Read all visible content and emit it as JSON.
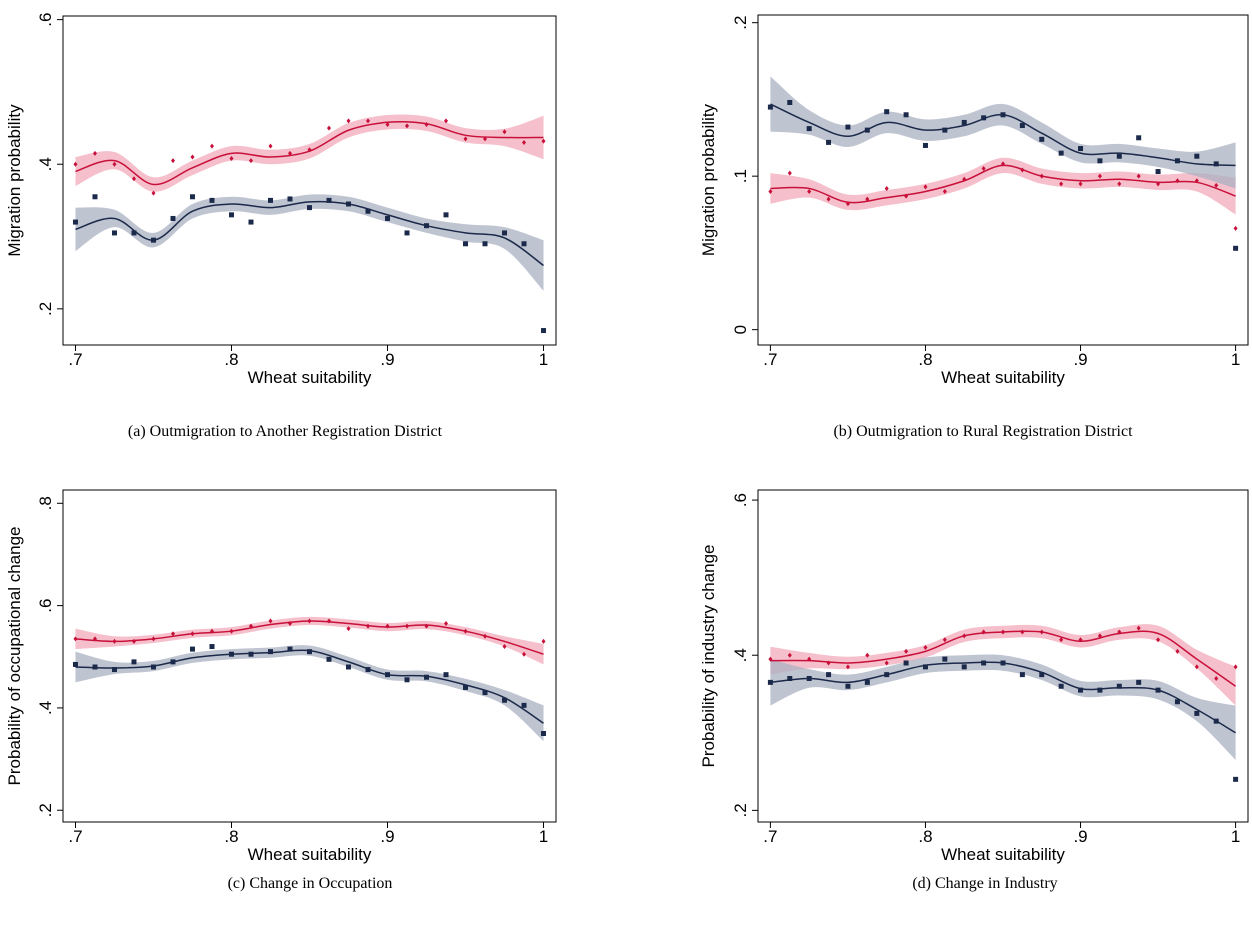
{
  "chart_data": [
    {
      "type": "scatter",
      "caption": "(a)  Outmigration to Another Registration District",
      "x_label": "Wheat suitability",
      "y_label": "Migration probability",
      "x": [
        0.7,
        0.7125,
        0.725,
        0.7375,
        0.75,
        0.7625,
        0.775,
        0.7875,
        0.8,
        0.8125,
        0.825,
        0.8375,
        0.85,
        0.8625,
        0.875,
        0.8875,
        0.9,
        0.9125,
        0.925,
        0.9375,
        0.95,
        0.9625,
        0.975,
        0.9875,
        1.0
      ],
      "fit_x": [
        0.7,
        0.725,
        0.75,
        0.775,
        0.8,
        0.825,
        0.85,
        0.875,
        0.9,
        0.925,
        0.95,
        0.975,
        1.0
      ],
      "xlim": [
        0.692,
        1.008
      ],
      "xticks": [
        {
          "value": 0.7,
          "label": ".7"
        },
        {
          "value": 0.8,
          "label": ".8"
        },
        {
          "value": 0.9,
          "label": ".9"
        },
        1
      ],
      "ylim": [
        0.15,
        0.605
      ],
      "yticks": [
        {
          "value": 0.2,
          "label": ".2"
        },
        {
          "value": 0.4,
          "label": ".4"
        },
        {
          "value": 0.6,
          "label": ".6"
        }
      ],
      "series": [
        {
          "color": "#c8103a",
          "band_color": "#f2a9ba",
          "marker": "diamond",
          "values": [
            0.4,
            0.415,
            0.4,
            0.38,
            0.36,
            0.405,
            0.41,
            0.425,
            0.408,
            0.405,
            0.425,
            0.415,
            0.42,
            0.45,
            0.46,
            0.46,
            0.455,
            0.453,
            0.455,
            0.46,
            0.435,
            0.435,
            0.445,
            0.43,
            0.432
          ],
          "fit": [
            0.39,
            0.405,
            0.372,
            0.395,
            0.415,
            0.41,
            0.418,
            0.447,
            0.458,
            0.456,
            0.44,
            0.437,
            0.437
          ],
          "ci": [
            0.02,
            0.012,
            0.01,
            0.01,
            0.01,
            0.01,
            0.01,
            0.01,
            0.01,
            0.01,
            0.01,
            0.012,
            0.03
          ]
        },
        {
          "color": "#1b2a4a",
          "band_color": "#a9b0c2",
          "marker": "square",
          "values": [
            0.32,
            0.355,
            0.305,
            0.305,
            0.295,
            0.325,
            0.355,
            0.35,
            0.33,
            0.32,
            0.35,
            0.352,
            0.34,
            0.35,
            0.345,
            0.335,
            0.325,
            0.305,
            0.315,
            0.33,
            0.29,
            0.29,
            0.305,
            0.29,
            0.17
          ],
          "fit": [
            0.31,
            0.325,
            0.295,
            0.335,
            0.345,
            0.34,
            0.348,
            0.345,
            0.33,
            0.315,
            0.305,
            0.298,
            0.26
          ],
          "ci": [
            0.03,
            0.012,
            0.01,
            0.01,
            0.01,
            0.01,
            0.01,
            0.01,
            0.01,
            0.01,
            0.012,
            0.015,
            0.035
          ]
        }
      ]
    },
    {
      "type": "scatter",
      "caption": "(b)  Outmigration to Rural Registration District",
      "x_label": "Wheat suitability",
      "y_label": "Migration probability",
      "x": [
        0.7,
        0.7125,
        0.725,
        0.7375,
        0.75,
        0.7625,
        0.775,
        0.7875,
        0.8,
        0.8125,
        0.825,
        0.8375,
        0.85,
        0.8625,
        0.875,
        0.8875,
        0.9,
        0.9125,
        0.925,
        0.9375,
        0.95,
        0.9625,
        0.975,
        0.9875,
        1.0
      ],
      "fit_x": [
        0.7,
        0.725,
        0.75,
        0.775,
        0.8,
        0.825,
        0.85,
        0.875,
        0.9,
        0.925,
        0.95,
        0.975,
        1.0
      ],
      "xlim": [
        0.692,
        1.008
      ],
      "xticks": [
        {
          "value": 0.7,
          "label": ".7"
        },
        {
          "value": 0.8,
          "label": ".8"
        },
        {
          "value": 0.9,
          "label": ".9"
        },
        1
      ],
      "ylim": [
        -0.01,
        0.205
      ],
      "yticks": [
        0,
        {
          "value": 0.1,
          "label": ".1"
        },
        {
          "value": 0.2,
          "label": ".2"
        }
      ],
      "series": [
        {
          "color": "#c8103a",
          "band_color": "#f2a9ba",
          "marker": "diamond",
          "values": [
            0.09,
            0.102,
            0.09,
            0.085,
            0.082,
            0.085,
            0.092,
            0.087,
            0.093,
            0.09,
            0.098,
            0.105,
            0.108,
            0.104,
            0.1,
            0.095,
            0.095,
            0.1,
            0.095,
            0.1,
            0.095,
            0.097,
            0.097,
            0.094,
            0.066
          ],
          "fit": [
            0.092,
            0.092,
            0.083,
            0.086,
            0.09,
            0.097,
            0.107,
            0.1,
            0.097,
            0.098,
            0.096,
            0.096,
            0.087
          ],
          "ci": [
            0.01,
            0.006,
            0.005,
            0.005,
            0.005,
            0.005,
            0.005,
            0.005,
            0.005,
            0.005,
            0.005,
            0.006,
            0.012
          ]
        },
        {
          "color": "#1b2a4a",
          "band_color": "#a9b0c2",
          "marker": "square",
          "values": [
            0.145,
            0.148,
            0.131,
            0.122,
            0.132,
            0.13,
            0.142,
            0.14,
            0.12,
            0.13,
            0.135,
            0.138,
            0.14,
            0.133,
            0.124,
            0.115,
            0.118,
            0.11,
            0.113,
            0.125,
            0.103,
            0.11,
            0.113,
            0.108,
            0.053
          ],
          "fit": [
            0.147,
            0.135,
            0.126,
            0.135,
            0.13,
            0.133,
            0.14,
            0.128,
            0.115,
            0.115,
            0.112,
            0.108,
            0.107
          ],
          "ci": [
            0.018,
            0.008,
            0.007,
            0.007,
            0.007,
            0.007,
            0.007,
            0.007,
            0.006,
            0.006,
            0.006,
            0.008,
            0.015
          ]
        }
      ]
    },
    {
      "type": "scatter",
      "caption": "(c)  Change in Occupation",
      "x_label": "Wheat suitability",
      "y_label": "Probability of occupational change",
      "x": [
        0.7,
        0.7125,
        0.725,
        0.7375,
        0.75,
        0.7625,
        0.775,
        0.7875,
        0.8,
        0.8125,
        0.825,
        0.8375,
        0.85,
        0.8625,
        0.875,
        0.8875,
        0.9,
        0.9125,
        0.925,
        0.9375,
        0.95,
        0.9625,
        0.975,
        0.9875,
        1.0
      ],
      "fit_x": [
        0.7,
        0.725,
        0.75,
        0.775,
        0.8,
        0.825,
        0.85,
        0.875,
        0.9,
        0.925,
        0.95,
        0.975,
        1.0
      ],
      "xlim": [
        0.692,
        1.008
      ],
      "xticks": [
        {
          "value": 0.7,
          "label": ".7"
        },
        {
          "value": 0.8,
          "label": ".8"
        },
        {
          "value": 0.9,
          "label": ".9"
        },
        1
      ],
      "ylim": [
        0.177,
        0.826
      ],
      "yticks": [
        {
          "value": 0.2,
          "label": ".2"
        },
        {
          "value": 0.4,
          "label": ".4"
        },
        {
          "value": 0.6,
          "label": ".6"
        },
        {
          "value": 0.8,
          "label": ".8"
        }
      ],
      "series": [
        {
          "color": "#c8103a",
          "band_color": "#f2a9ba",
          "marker": "diamond",
          "values": [
            0.535,
            0.535,
            0.53,
            0.53,
            0.535,
            0.545,
            0.545,
            0.55,
            0.55,
            0.56,
            0.57,
            0.565,
            0.57,
            0.57,
            0.555,
            0.56,
            0.56,
            0.56,
            0.56,
            0.565,
            0.55,
            0.54,
            0.52,
            0.505,
            0.53
          ],
          "fit": [
            0.535,
            0.53,
            0.535,
            0.545,
            0.55,
            0.563,
            0.57,
            0.565,
            0.558,
            0.562,
            0.55,
            0.53,
            0.505
          ],
          "ci": [
            0.02,
            0.01,
            0.008,
            0.008,
            0.008,
            0.008,
            0.008,
            0.008,
            0.008,
            0.008,
            0.008,
            0.01,
            0.02
          ]
        },
        {
          "color": "#1b2a4a",
          "band_color": "#a9b0c2",
          "marker": "square",
          "values": [
            0.485,
            0.48,
            0.475,
            0.49,
            0.48,
            0.49,
            0.515,
            0.52,
            0.505,
            0.505,
            0.51,
            0.515,
            0.51,
            0.495,
            0.48,
            0.475,
            0.465,
            0.455,
            0.46,
            0.465,
            0.44,
            0.43,
            0.415,
            0.405,
            0.35
          ],
          "fit": [
            0.48,
            0.478,
            0.482,
            0.498,
            0.505,
            0.508,
            0.512,
            0.49,
            0.465,
            0.462,
            0.445,
            0.42,
            0.37
          ],
          "ci": [
            0.03,
            0.012,
            0.01,
            0.01,
            0.01,
            0.01,
            0.01,
            0.01,
            0.01,
            0.01,
            0.012,
            0.015,
            0.035
          ]
        }
      ]
    },
    {
      "type": "scatter",
      "caption": "(d)  Change in Industry",
      "x_label": "Wheat suitability",
      "y_label": "Probability of industry change",
      "x": [
        0.7,
        0.7125,
        0.725,
        0.7375,
        0.75,
        0.7625,
        0.775,
        0.7875,
        0.8,
        0.8125,
        0.825,
        0.8375,
        0.85,
        0.8625,
        0.875,
        0.8875,
        0.9,
        0.9125,
        0.925,
        0.9375,
        0.95,
        0.9625,
        0.975,
        0.9875,
        1.0
      ],
      "fit_x": [
        0.7,
        0.725,
        0.75,
        0.775,
        0.8,
        0.825,
        0.85,
        0.875,
        0.9,
        0.925,
        0.95,
        0.975,
        1.0
      ],
      "xlim": [
        0.692,
        1.008
      ],
      "xticks": [
        {
          "value": 0.7,
          "label": ".7"
        },
        {
          "value": 0.8,
          "label": ".8"
        },
        {
          "value": 0.9,
          "label": ".9"
        },
        1
      ],
      "ylim": [
        0.185,
        0.613
      ],
      "yticks": [
        {
          "value": 0.2,
          "label": ".2"
        },
        {
          "value": 0.4,
          "label": ".4"
        },
        {
          "value": 0.6,
          "label": ".6"
        }
      ],
      "series": [
        {
          "color": "#c8103a",
          "band_color": "#f2a9ba",
          "marker": "diamond",
          "values": [
            0.395,
            0.4,
            0.395,
            0.39,
            0.385,
            0.4,
            0.39,
            0.405,
            0.41,
            0.42,
            0.425,
            0.43,
            0.43,
            0.43,
            0.43,
            0.42,
            0.42,
            0.425,
            0.43,
            0.435,
            0.42,
            0.405,
            0.385,
            0.37,
            0.385
          ],
          "fit": [
            0.393,
            0.393,
            0.39,
            0.395,
            0.405,
            0.425,
            0.43,
            0.43,
            0.418,
            0.428,
            0.428,
            0.395,
            0.36
          ],
          "ci": [
            0.018,
            0.01,
            0.008,
            0.008,
            0.008,
            0.008,
            0.008,
            0.008,
            0.008,
            0.008,
            0.01,
            0.012,
            0.025
          ]
        },
        {
          "color": "#1b2a4a",
          "band_color": "#a9b0c2",
          "marker": "square",
          "values": [
            0.365,
            0.37,
            0.37,
            0.375,
            0.36,
            0.365,
            0.375,
            0.39,
            0.385,
            0.395,
            0.385,
            0.39,
            0.39,
            0.375,
            0.375,
            0.36,
            0.355,
            0.355,
            0.36,
            0.365,
            0.355,
            0.34,
            0.325,
            0.315,
            0.24
          ],
          "fit": [
            0.365,
            0.37,
            0.365,
            0.375,
            0.387,
            0.39,
            0.39,
            0.378,
            0.357,
            0.358,
            0.355,
            0.33,
            0.3
          ],
          "ci": [
            0.03,
            0.012,
            0.01,
            0.01,
            0.01,
            0.01,
            0.01,
            0.01,
            0.01,
            0.01,
            0.012,
            0.015,
            0.035
          ]
        }
      ]
    }
  ]
}
